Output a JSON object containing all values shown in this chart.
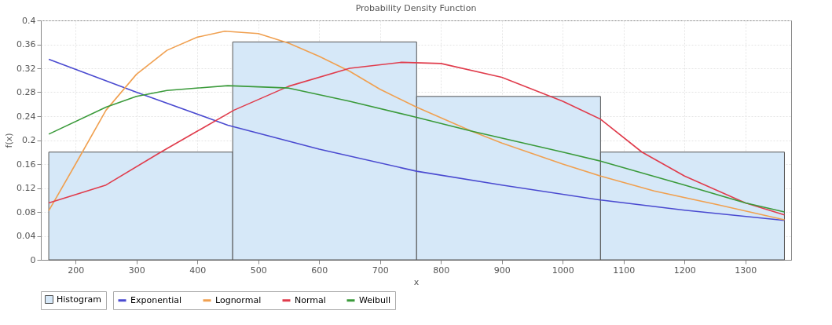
{
  "chart_data": {
    "type": "histogram",
    "title": "Probability Density Function",
    "xlabel": "x",
    "ylabel": "f(x)",
    "bins": [
      156,
      458,
      760,
      1062,
      1364
    ],
    "xlim": [
      143,
      1375
    ],
    "xticks": [
      200,
      300,
      400,
      500,
      600,
      700,
      800,
      900,
      1000,
      1100,
      1200,
      1300
    ],
    "ylim": [
      0,
      0.4
    ],
    "yticks": [
      0,
      0.04,
      0.08,
      0.12,
      0.16,
      0.2,
      0.24,
      0.28,
      0.32,
      0.36,
      0.4
    ],
    "grid": true,
    "legend": "bottom",
    "series": [
      {
        "name": "Histogram",
        "color": "#d6e8f8",
        "values": [
          0.18,
          0.364,
          0.273,
          0.18
        ]
      },
      {
        "name": "Exponential",
        "type": "line",
        "color": "#4a4ad0",
        "x": [
          156,
          300,
          450,
          600,
          760,
          900,
          1062,
          1200,
          1364
        ],
        "values": [
          0.335,
          0.28,
          0.225,
          0.185,
          0.148,
          0.125,
          0.1,
          0.083,
          0.066
        ]
      },
      {
        "name": "Lognormal",
        "type": "line",
        "color": "#f0a050",
        "x": [
          156,
          200,
          250,
          300,
          350,
          400,
          445,
          500,
          550,
          600,
          650,
          700,
          760,
          850,
          900,
          1000,
          1062,
          1150,
          1250,
          1364
        ],
        "values": [
          0.082,
          0.16,
          0.25,
          0.31,
          0.35,
          0.372,
          0.382,
          0.378,
          0.362,
          0.34,
          0.315,
          0.285,
          0.255,
          0.215,
          0.195,
          0.16,
          0.14,
          0.115,
          0.093,
          0.067
        ]
      },
      {
        "name": "Normal",
        "type": "line",
        "color": "#e03c4c",
        "x": [
          156,
          250,
          340,
          400,
          460,
          550,
          650,
          735,
          800,
          900,
          1000,
          1062,
          1130,
          1200,
          1300,
          1364
        ],
        "values": [
          0.095,
          0.125,
          0.18,
          0.215,
          0.25,
          0.29,
          0.32,
          0.33,
          0.328,
          0.305,
          0.265,
          0.235,
          0.18,
          0.14,
          0.095,
          0.075
        ]
      },
      {
        "name": "Weibull",
        "type": "line",
        "color": "#3a9a3a",
        "x": [
          156,
          250,
          300,
          350,
          450,
          550,
          650,
          760,
          850,
          1000,
          1062,
          1200,
          1300,
          1364
        ],
        "values": [
          0.21,
          0.255,
          0.273,
          0.283,
          0.291,
          0.287,
          0.265,
          0.238,
          0.215,
          0.18,
          0.165,
          0.125,
          0.095,
          0.08
        ]
      }
    ]
  }
}
